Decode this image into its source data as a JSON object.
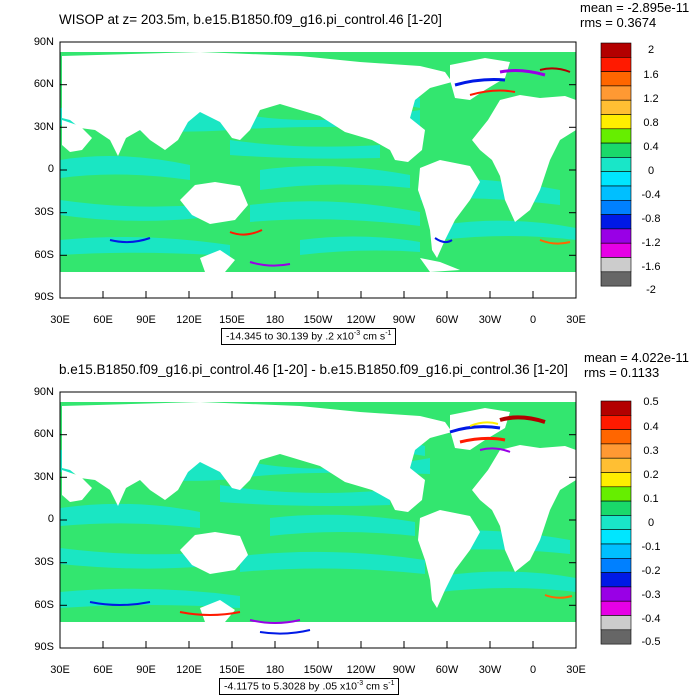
{
  "panels": [
    {
      "title": "WISOP at z= 203.5m, b.e15.B1850.f09_g16.pi_control.46 [1-20]",
      "mean_text": "mean = -2.895e-11",
      "rms_text": "rms = 0.3674",
      "lat_labels": [
        "90N",
        "60N",
        "30N",
        "0",
        "30S",
        "60S",
        "90S"
      ],
      "lon_labels": [
        "30E",
        "60E",
        "90E",
        "120E",
        "150E",
        "180",
        "150W",
        "120W",
        "90W",
        "60W",
        "30W",
        "0",
        "30E"
      ],
      "colorbar_labels": [
        "2",
        "1.6",
        "1.2",
        "0.8",
        "0.4",
        "0",
        "-0.4",
        "-0.8",
        "-1.2",
        "-1.6",
        "-2"
      ],
      "range": {
        "text": "-14.345 to 30.139 by .2 x10",
        "exp": "-3",
        "unit": " cm s",
        "unit_exp": "-1"
      }
    },
    {
      "title": "b.e15.B1850.f09_g16.pi_control.46 [1-20] - b.e15.B1850.f09_g16.pi_control.36 [1-20]",
      "mean_text": "mean = 4.022e-11",
      "rms_text": "rms = 0.1133",
      "lat_labels": [
        "90N",
        "60N",
        "30N",
        "0",
        "30S",
        "60S",
        "90S"
      ],
      "lon_labels": [
        "30E",
        "60E",
        "90E",
        "120E",
        "150E",
        "180",
        "150W",
        "120W",
        "90W",
        "60W",
        "30W",
        "0",
        "30E"
      ],
      "colorbar_labels": [
        "0.5",
        "0.4",
        "0.3",
        "0.2",
        "0.1",
        "0",
        "-0.1",
        "-0.2",
        "-0.3",
        "-0.4",
        "-0.5"
      ],
      "range": {
        "text": "-4.1175 to 5.3028 by .05 x10",
        "exp": "-3",
        "unit": " cm s",
        "unit_exp": "-1"
      }
    }
  ],
  "colors": {
    "ocean_main": "#33e66f",
    "ocean_cyan": "#19e6c8",
    "land": "#ffffff",
    "colorbar": [
      "#b30000",
      "#ff1a00",
      "#ff6600",
      "#ff9933",
      "#ffbf33",
      "#ffee00",
      "#66ee00",
      "#1ad96a",
      "#19e6c8",
      "#00e6ff",
      "#00bfff",
      "#0080ff",
      "#0019e6",
      "#9900e6",
      "#e600e6",
      "#cccccc",
      "#666666"
    ]
  }
}
